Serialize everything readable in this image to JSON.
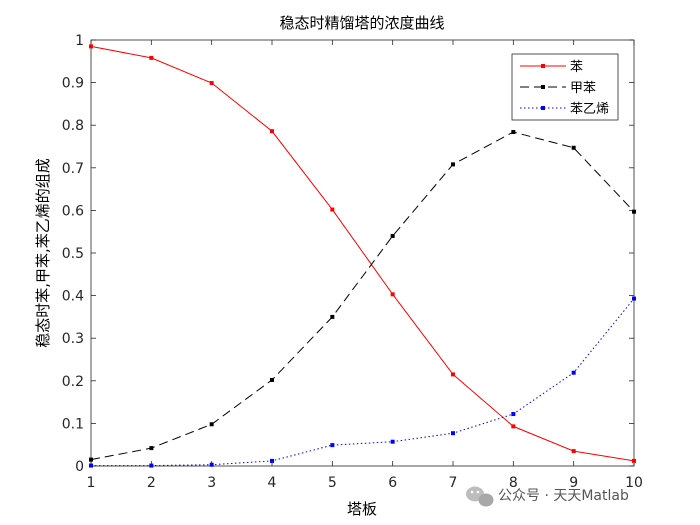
{
  "chart_data": {
    "type": "line",
    "title": "稳态时精馏塔的浓度曲线",
    "xlabel": "塔板",
    "ylabel": "稳态时苯,甲苯,苯乙烯的组成",
    "xlim": [
      1,
      10
    ],
    "ylim": [
      0,
      1
    ],
    "x": [
      1,
      2,
      3,
      4,
      5,
      6,
      7,
      8,
      9,
      10
    ],
    "xticks": [
      "1",
      "2",
      "3",
      "4",
      "5",
      "6",
      "7",
      "8",
      "9",
      "10"
    ],
    "yticks": [
      "0",
      "0.1",
      "0.2",
      "0.3",
      "0.4",
      "0.5",
      "0.6",
      "0.7",
      "0.8",
      "0.9",
      "1"
    ],
    "grid": false,
    "legend_position": "top-right",
    "series": [
      {
        "name": "苯",
        "color": "#ff0000",
        "style": "solid",
        "marker": "dot",
        "values": [
          0.985,
          0.958,
          0.899,
          0.786,
          0.602,
          0.403,
          0.215,
          0.093,
          0.035,
          0.012
        ]
      },
      {
        "name": "甲苯",
        "color": "#000000",
        "style": "dashed",
        "marker": "dot",
        "values": [
          0.015,
          0.042,
          0.098,
          0.202,
          0.35,
          0.54,
          0.708,
          0.784,
          0.747,
          0.597
        ]
      },
      {
        "name": "苯乙烯",
        "color": "#0000ff",
        "style": "dotted",
        "marker": "dot",
        "values": [
          0.001,
          0.001,
          0.003,
          0.012,
          0.049,
          0.057,
          0.077,
          0.122,
          0.219,
          0.393
        ]
      }
    ]
  },
  "watermark": {
    "icon": "wechat-icon",
    "text": "公众号 · 天天Matlab"
  }
}
